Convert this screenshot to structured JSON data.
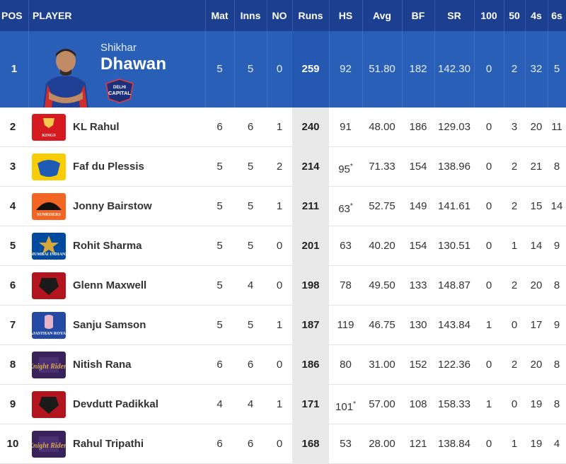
{
  "headers": {
    "pos": "POS",
    "player": "PLAYER",
    "mat": "Mat",
    "inns": "Inns",
    "no": "NO",
    "runs": "Runs",
    "hs": "HS",
    "avg": "Avg",
    "bf": "BF",
    "sr": "SR",
    "h100": "100",
    "h50": "50",
    "fours": "4s",
    "sixes": "6s"
  },
  "leader": {
    "pos": "1",
    "first": "Shikhar",
    "last": "Dhawan",
    "team_badge_text": "DELHI CAPITALS",
    "mat": "5",
    "inns": "5",
    "no": "0",
    "runs": "259",
    "hs": "92",
    "avg": "51.80",
    "bf": "182",
    "sr": "142.30",
    "h100": "0",
    "h50": "2",
    "fours": "32",
    "sixes": "5"
  },
  "rows": [
    {
      "pos": "2",
      "name": "KL Rahul",
      "team": "punjab-kings",
      "logo_text": "KINGS",
      "mat": "6",
      "inns": "6",
      "no": "1",
      "runs": "240",
      "hs": "91",
      "hs_star": "",
      "avg": "48.00",
      "bf": "186",
      "sr": "129.03",
      "h100": "0",
      "h50": "3",
      "fours": "20",
      "sixes": "11"
    },
    {
      "pos": "3",
      "name": "Faf du Plessis",
      "team": "chennai-super-kings",
      "logo_text": "",
      "mat": "5",
      "inns": "5",
      "no": "2",
      "runs": "214",
      "hs": "95",
      "hs_star": "*",
      "avg": "71.33",
      "bf": "154",
      "sr": "138.96",
      "h100": "0",
      "h50": "2",
      "fours": "21",
      "sixes": "8"
    },
    {
      "pos": "4",
      "name": "Jonny Bairstow",
      "team": "sunrisers-hyderabad",
      "logo_text": "SUNRISERS",
      "mat": "5",
      "inns": "5",
      "no": "1",
      "runs": "211",
      "hs": "63",
      "hs_star": "*",
      "avg": "52.75",
      "bf": "149",
      "sr": "141.61",
      "h100": "0",
      "h50": "2",
      "fours": "15",
      "sixes": "14"
    },
    {
      "pos": "5",
      "name": "Rohit Sharma",
      "team": "mumbai-indians",
      "logo_text": "MUMBAI INDIANS",
      "mat": "5",
      "inns": "5",
      "no": "0",
      "runs": "201",
      "hs": "63",
      "hs_star": "",
      "avg": "40.20",
      "bf": "154",
      "sr": "130.51",
      "h100": "0",
      "h50": "1",
      "fours": "14",
      "sixes": "9"
    },
    {
      "pos": "6",
      "name": "Glenn Maxwell",
      "team": "royal-challengers",
      "logo_text": "",
      "mat": "5",
      "inns": "4",
      "no": "0",
      "runs": "198",
      "hs": "78",
      "hs_star": "",
      "avg": "49.50",
      "bf": "133",
      "sr": "148.87",
      "h100": "0",
      "h50": "2",
      "fours": "20",
      "sixes": "8"
    },
    {
      "pos": "7",
      "name": "Sanju Samson",
      "team": "rajasthan-royals",
      "logo_text": "RAJASTHAN ROYALS",
      "mat": "5",
      "inns": "5",
      "no": "1",
      "runs": "187",
      "hs": "119",
      "hs_star": "",
      "avg": "46.75",
      "bf": "130",
      "sr": "143.84",
      "h100": "1",
      "h50": "0",
      "fours": "17",
      "sixes": "9"
    },
    {
      "pos": "8",
      "name": "Nitish Rana",
      "team": "kolkata-knight-riders",
      "logo_text": "Knight Riders",
      "mat": "6",
      "inns": "6",
      "no": "0",
      "runs": "186",
      "hs": "80",
      "hs_star": "",
      "avg": "31.00",
      "bf": "152",
      "sr": "122.36",
      "h100": "0",
      "h50": "2",
      "fours": "20",
      "sixes": "8"
    },
    {
      "pos": "9",
      "name": "Devdutt Padikkal",
      "team": "royal-challengers",
      "logo_text": "",
      "mat": "4",
      "inns": "4",
      "no": "1",
      "runs": "171",
      "hs": "101",
      "hs_star": "*",
      "avg": "57.00",
      "bf": "108",
      "sr": "158.33",
      "h100": "1",
      "h50": "0",
      "fours": "19",
      "sixes": "8"
    },
    {
      "pos": "10",
      "name": "Rahul Tripathi",
      "team": "kolkata-knight-riders",
      "logo_text": "Knight Riders",
      "mat": "6",
      "inns": "6",
      "no": "0",
      "runs": "168",
      "hs": "53",
      "hs_star": "",
      "avg": "28.00",
      "bf": "121",
      "sr": "138.84",
      "h100": "0",
      "h50": "1",
      "fours": "19",
      "sixes": "4"
    }
  ],
  "team_colors": {
    "punjab-kings": "#d71920",
    "chennai-super-kings": "#f9cd05",
    "sunrisers-hyderabad": "#f26522",
    "mumbai-indians": "#004ba0",
    "royal-challengers": "#b3151e",
    "rajasthan-royals": "#254aa5",
    "kolkata-knight-riders": "#3a225d"
  },
  "theme": {
    "header_bg": "#1d3f8f",
    "leader_bg": "#2a5fb8",
    "runs_col_bg": "#e9e9e9"
  }
}
